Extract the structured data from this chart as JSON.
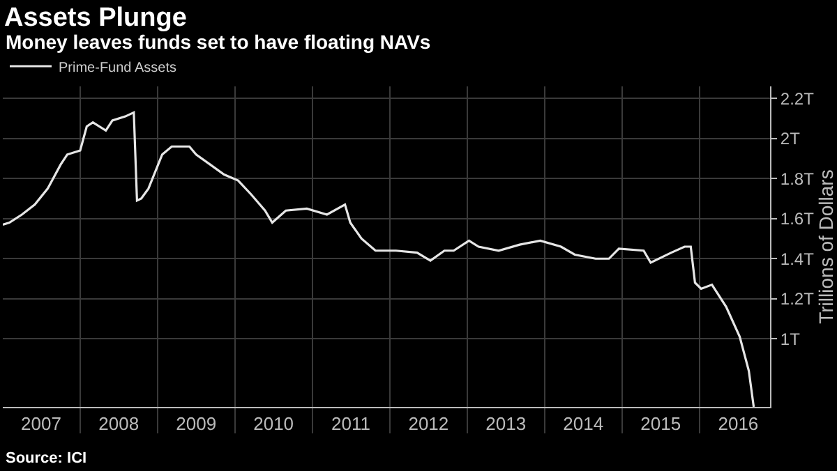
{
  "chart_data": {
    "type": "line",
    "title": "Assets Plunge",
    "subtitle": "Money leaves funds set to have floating NAVs",
    "ylabel": "Trillions of Dollars",
    "annotations": [
      "Source: ICI"
    ],
    "x": [
      "2007-01",
      "2007-02",
      "2007-04",
      "2007-06",
      "2007-08",
      "2007-10",
      "2007-11",
      "2008-01",
      "2008-02",
      "2008-03",
      "2008-05",
      "2008-06",
      "2008-08",
      "2008-09-10",
      "2008-09-25",
      "2008-10-15",
      "2008-11-18",
      "2009-01-22",
      "2009-03-08",
      "2009-05-30",
      "2009-07-01",
      "2009-09-05",
      "2009-11-10",
      "2010-01-15",
      "2010-03-18",
      "2010-05-22",
      "2010-06-25",
      "2010-08-28",
      "2010-12-05",
      "2011-03-10",
      "2011-06-03",
      "2011-06-28",
      "2011-08-20",
      "2011-10-25",
      "2012-01-30",
      "2012-05-08",
      "2012-07-10",
      "2012-09-14",
      "2012-10-28",
      "2013-01-08",
      "2013-02-22",
      "2013-05-28",
      "2013-09-04",
      "2013-12-10",
      "2014-03-18",
      "2014-05-22",
      "2014-08-28",
      "2014-10-30",
      "2014-12-16",
      "2015-04-12",
      "2015-05-15",
      "2015-08-20",
      "2015-10-22",
      "2015-11-20",
      "2015-12-10",
      "2016-01-08",
      "2016-02-28",
      "2016-05-05",
      "2016-07-08",
      "2016-08-20",
      "2016-09-12"
    ],
    "series": [
      {
        "name": "Prime-Fund Assets",
        "color": "#e6e6e6",
        "values": [
          1.57,
          1.58,
          1.62,
          1.67,
          1.75,
          1.87,
          1.92,
          1.94,
          2.06,
          2.08,
          2.04,
          2.09,
          2.11,
          2.13,
          1.69,
          1.7,
          1.75,
          1.92,
          1.96,
          1.96,
          1.92,
          1.87,
          1.82,
          1.79,
          1.72,
          1.64,
          1.58,
          1.64,
          1.65,
          1.62,
          1.67,
          1.58,
          1.5,
          1.44,
          1.44,
          1.43,
          1.39,
          1.44,
          1.44,
          1.49,
          1.46,
          1.44,
          1.47,
          1.49,
          1.46,
          1.42,
          1.4,
          1.4,
          1.45,
          1.44,
          1.38,
          1.43,
          1.46,
          1.46,
          1.28,
          1.25,
          1.27,
          1.16,
          1.01,
          0.84,
          0.66
        ]
      }
    ],
    "xlim": [
      "2007-01-01",
      "2016-11-28"
    ],
    "xticks": [
      {
        "value": "2007-07-01",
        "label": "2007"
      },
      {
        "value": "2008-07-01",
        "label": "2008"
      },
      {
        "value": "2009-07-01",
        "label": "2009"
      },
      {
        "value": "2010-07-01",
        "label": "2010"
      },
      {
        "value": "2011-07-01",
        "label": "2011"
      },
      {
        "value": "2012-07-01",
        "label": "2012"
      },
      {
        "value": "2013-07-01",
        "label": "2013"
      },
      {
        "value": "2014-07-01",
        "label": "2014"
      },
      {
        "value": "2015-07-01",
        "label": "2015"
      },
      {
        "value": "2016-07-01",
        "label": "2016"
      },
      {
        "value": "2008-01-01",
        "label": null
      },
      {
        "value": "2009-01-01",
        "label": null
      },
      {
        "value": "2010-01-01",
        "label": null
      },
      {
        "value": "2011-01-01",
        "label": null
      },
      {
        "value": "2012-01-01",
        "label": null
      },
      {
        "value": "2013-01-01",
        "label": null
      },
      {
        "value": "2014-01-01",
        "label": null
      },
      {
        "value": "2015-01-01",
        "label": null
      },
      {
        "value": "2016-01-01",
        "label": null
      }
    ],
    "ylim": [
      0.66,
      2.26
    ],
    "yticks": [
      {
        "value": 1,
        "label": "1T"
      },
      {
        "value": 1.2,
        "label": "1.2T"
      },
      {
        "value": 1.4,
        "label": "1.4T"
      },
      {
        "value": 1.6,
        "label": "1.6T"
      },
      {
        "value": 1.8,
        "label": "1.8T"
      },
      {
        "value": 2,
        "label": "2T"
      },
      {
        "value": 2.2,
        "label": "2.2T"
      }
    ],
    "grid": true,
    "legend": "top left",
    "marker": "none",
    "line_style": "solid"
  }
}
